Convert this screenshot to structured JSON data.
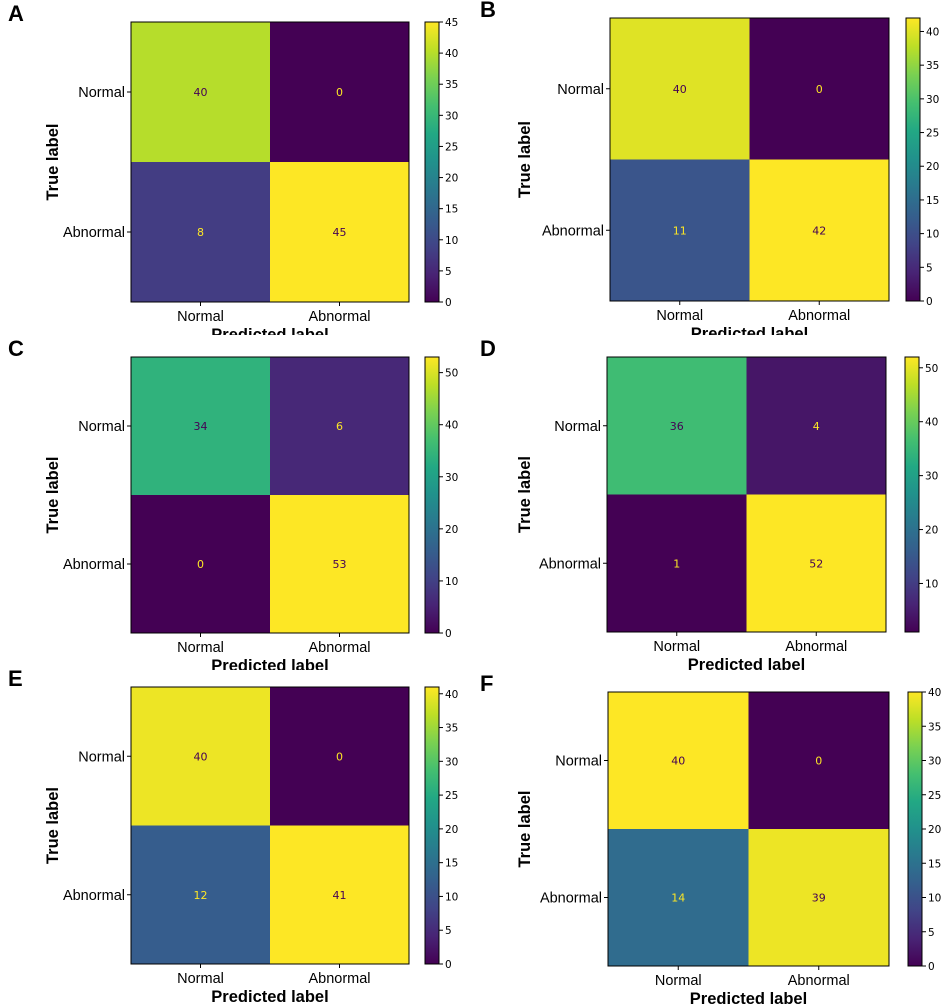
{
  "chart_data": [
    {
      "type": "heatmap",
      "panel_label": "A",
      "rows": [
        "Normal",
        "Abnormal"
      ],
      "columns": [
        "Normal",
        "Abnormal"
      ],
      "values": [
        [
          40,
          0
        ],
        [
          8,
          45
        ]
      ],
      "cell_labels": [
        [
          "40",
          "0"
        ],
        [
          "8",
          "45"
        ]
      ],
      "xlabel": "Predicted label",
      "ylabel": "True label",
      "colormap": "viridis",
      "colorbar": {
        "min": 0,
        "max": 45,
        "ticks": [
          0,
          5,
          10,
          15,
          20,
          25,
          30,
          35,
          40,
          45
        ],
        "tick_labels": [
          "0",
          "5",
          "10",
          "15",
          "20",
          "25",
          "30",
          "35",
          "40",
          "45"
        ]
      }
    },
    {
      "type": "heatmap",
      "panel_label": "B",
      "rows": [
        "Normal",
        "Abnormal"
      ],
      "columns": [
        "Normal",
        "Abnormal"
      ],
      "values": [
        [
          40,
          0
        ],
        [
          11,
          42
        ]
      ],
      "cell_labels": [
        [
          "40",
          "0"
        ],
        [
          "11",
          "42"
        ]
      ],
      "xlabel": "Predicted label",
      "ylabel": "True label",
      "colormap": "viridis",
      "colorbar": {
        "min": 0,
        "max": 42,
        "ticks": [
          0,
          5,
          10,
          15,
          20,
          25,
          30,
          35,
          40
        ],
        "tick_labels": [
          "0",
          "5",
          "10",
          "15",
          "20",
          "25",
          "30",
          "35",
          "40"
        ]
      }
    },
    {
      "type": "heatmap",
      "panel_label": "C",
      "rows": [
        "Normal",
        "Abnormal"
      ],
      "columns": [
        "Normal",
        "Abnormal"
      ],
      "values": [
        [
          34,
          6
        ],
        [
          0,
          53
        ]
      ],
      "cell_labels": [
        [
          "34",
          "6"
        ],
        [
          "0",
          "53"
        ]
      ],
      "xlabel": "Predicted label",
      "ylabel": "True label",
      "colormap": "viridis",
      "colorbar": {
        "min": 0,
        "max": 53,
        "ticks": [
          0,
          10,
          20,
          30,
          40,
          50
        ],
        "tick_labels": [
          "0",
          "10",
          "20",
          "30",
          "40",
          "50"
        ]
      }
    },
    {
      "type": "heatmap",
      "panel_label": "D",
      "rows": [
        "Normal",
        "Abnormal"
      ],
      "columns": [
        "Normal",
        "Abnormal"
      ],
      "values": [
        [
          36,
          4
        ],
        [
          1,
          52
        ]
      ],
      "cell_labels": [
        [
          "36",
          "4"
        ],
        [
          "1",
          "52"
        ]
      ],
      "xlabel": "Predicted label",
      "ylabel": "True label",
      "colormap": "viridis",
      "colorbar": {
        "min": 1,
        "max": 52,
        "ticks": [
          10,
          20,
          30,
          40,
          50
        ],
        "tick_labels": [
          "10",
          "20",
          "30",
          "40",
          "50"
        ]
      }
    },
    {
      "type": "heatmap",
      "panel_label": "E",
      "rows": [
        "Normal",
        "Abnormal"
      ],
      "columns": [
        "Normal",
        "Abnormal"
      ],
      "values": [
        [
          40,
          0
        ],
        [
          12,
          41
        ]
      ],
      "cell_labels": [
        [
          "40",
          "0"
        ],
        [
          "12",
          "41"
        ]
      ],
      "xlabel": "Predicted label",
      "ylabel": "True label",
      "colormap": "viridis",
      "colorbar": {
        "min": 0,
        "max": 41,
        "ticks": [
          0,
          5,
          10,
          15,
          20,
          25,
          30,
          35,
          40
        ],
        "tick_labels": [
          "0",
          "5",
          "10",
          "15",
          "20",
          "25",
          "30",
          "35",
          "40"
        ]
      }
    },
    {
      "type": "heatmap",
      "panel_label": "F",
      "rows": [
        "Normal",
        "Abnormal"
      ],
      "columns": [
        "Normal",
        "Abnormal"
      ],
      "values": [
        [
          40,
          0
        ],
        [
          14,
          39
        ]
      ],
      "cell_labels": [
        [
          "40",
          "0"
        ],
        [
          "14",
          "39"
        ]
      ],
      "xlabel": "Predicted label",
      "ylabel": "True label",
      "colormap": "viridis",
      "colorbar": {
        "min": 0,
        "max": 40,
        "ticks": [
          0,
          5,
          10,
          15,
          20,
          25,
          30,
          35,
          40
        ],
        "tick_labels": [
          "0",
          "5",
          "10",
          "15",
          "20",
          "25",
          "30",
          "35",
          "40"
        ]
      }
    }
  ],
  "colors": {
    "text_on_dark": "#fde725",
    "text_on_light": "#440154"
  }
}
